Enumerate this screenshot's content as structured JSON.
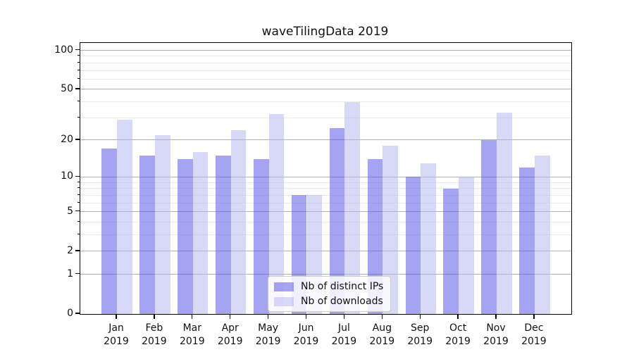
{
  "chart_data": {
    "type": "bar",
    "title": "waveTilingData 2019",
    "categories": [
      "Jan 2019",
      "Feb 2019",
      "Mar 2019",
      "Apr 2019",
      "May 2019",
      "Jun 2019",
      "Jul 2019",
      "Aug 2019",
      "Sep 2019",
      "Oct 2019",
      "Nov 2019",
      "Dec 2019"
    ],
    "series": [
      {
        "name": "Nb of distinct IPs",
        "color": "rgba(90,90,231,0.55)",
        "values": [
          17,
          15,
          14,
          15,
          14,
          7,
          25,
          14,
          10,
          8,
          20,
          12
        ]
      },
      {
        "name": "Nb of downloads",
        "color": "rgba(177,177,239,0.50)",
        "values": [
          29,
          22,
          16,
          24,
          32,
          7,
          40,
          18,
          13,
          10,
          33,
          15
        ]
      }
    ],
    "xlabel": "",
    "ylabel": "",
    "yscale": "symlog",
    "ylim": [
      0,
      114
    ],
    "y_ticks": [
      100,
      50,
      20,
      10,
      5,
      2,
      1,
      0
    ],
    "y_minor_gridlines": [
      90,
      80,
      70,
      60,
      40,
      30,
      9,
      8,
      7,
      6,
      4,
      3
    ],
    "grid": true,
    "legend_position": "lower center",
    "colors": {
      "major_grid": "#b0b0b0",
      "minor_grid": "#ebebeb",
      "axis": "#000000",
      "background": "#ffffff"
    }
  }
}
